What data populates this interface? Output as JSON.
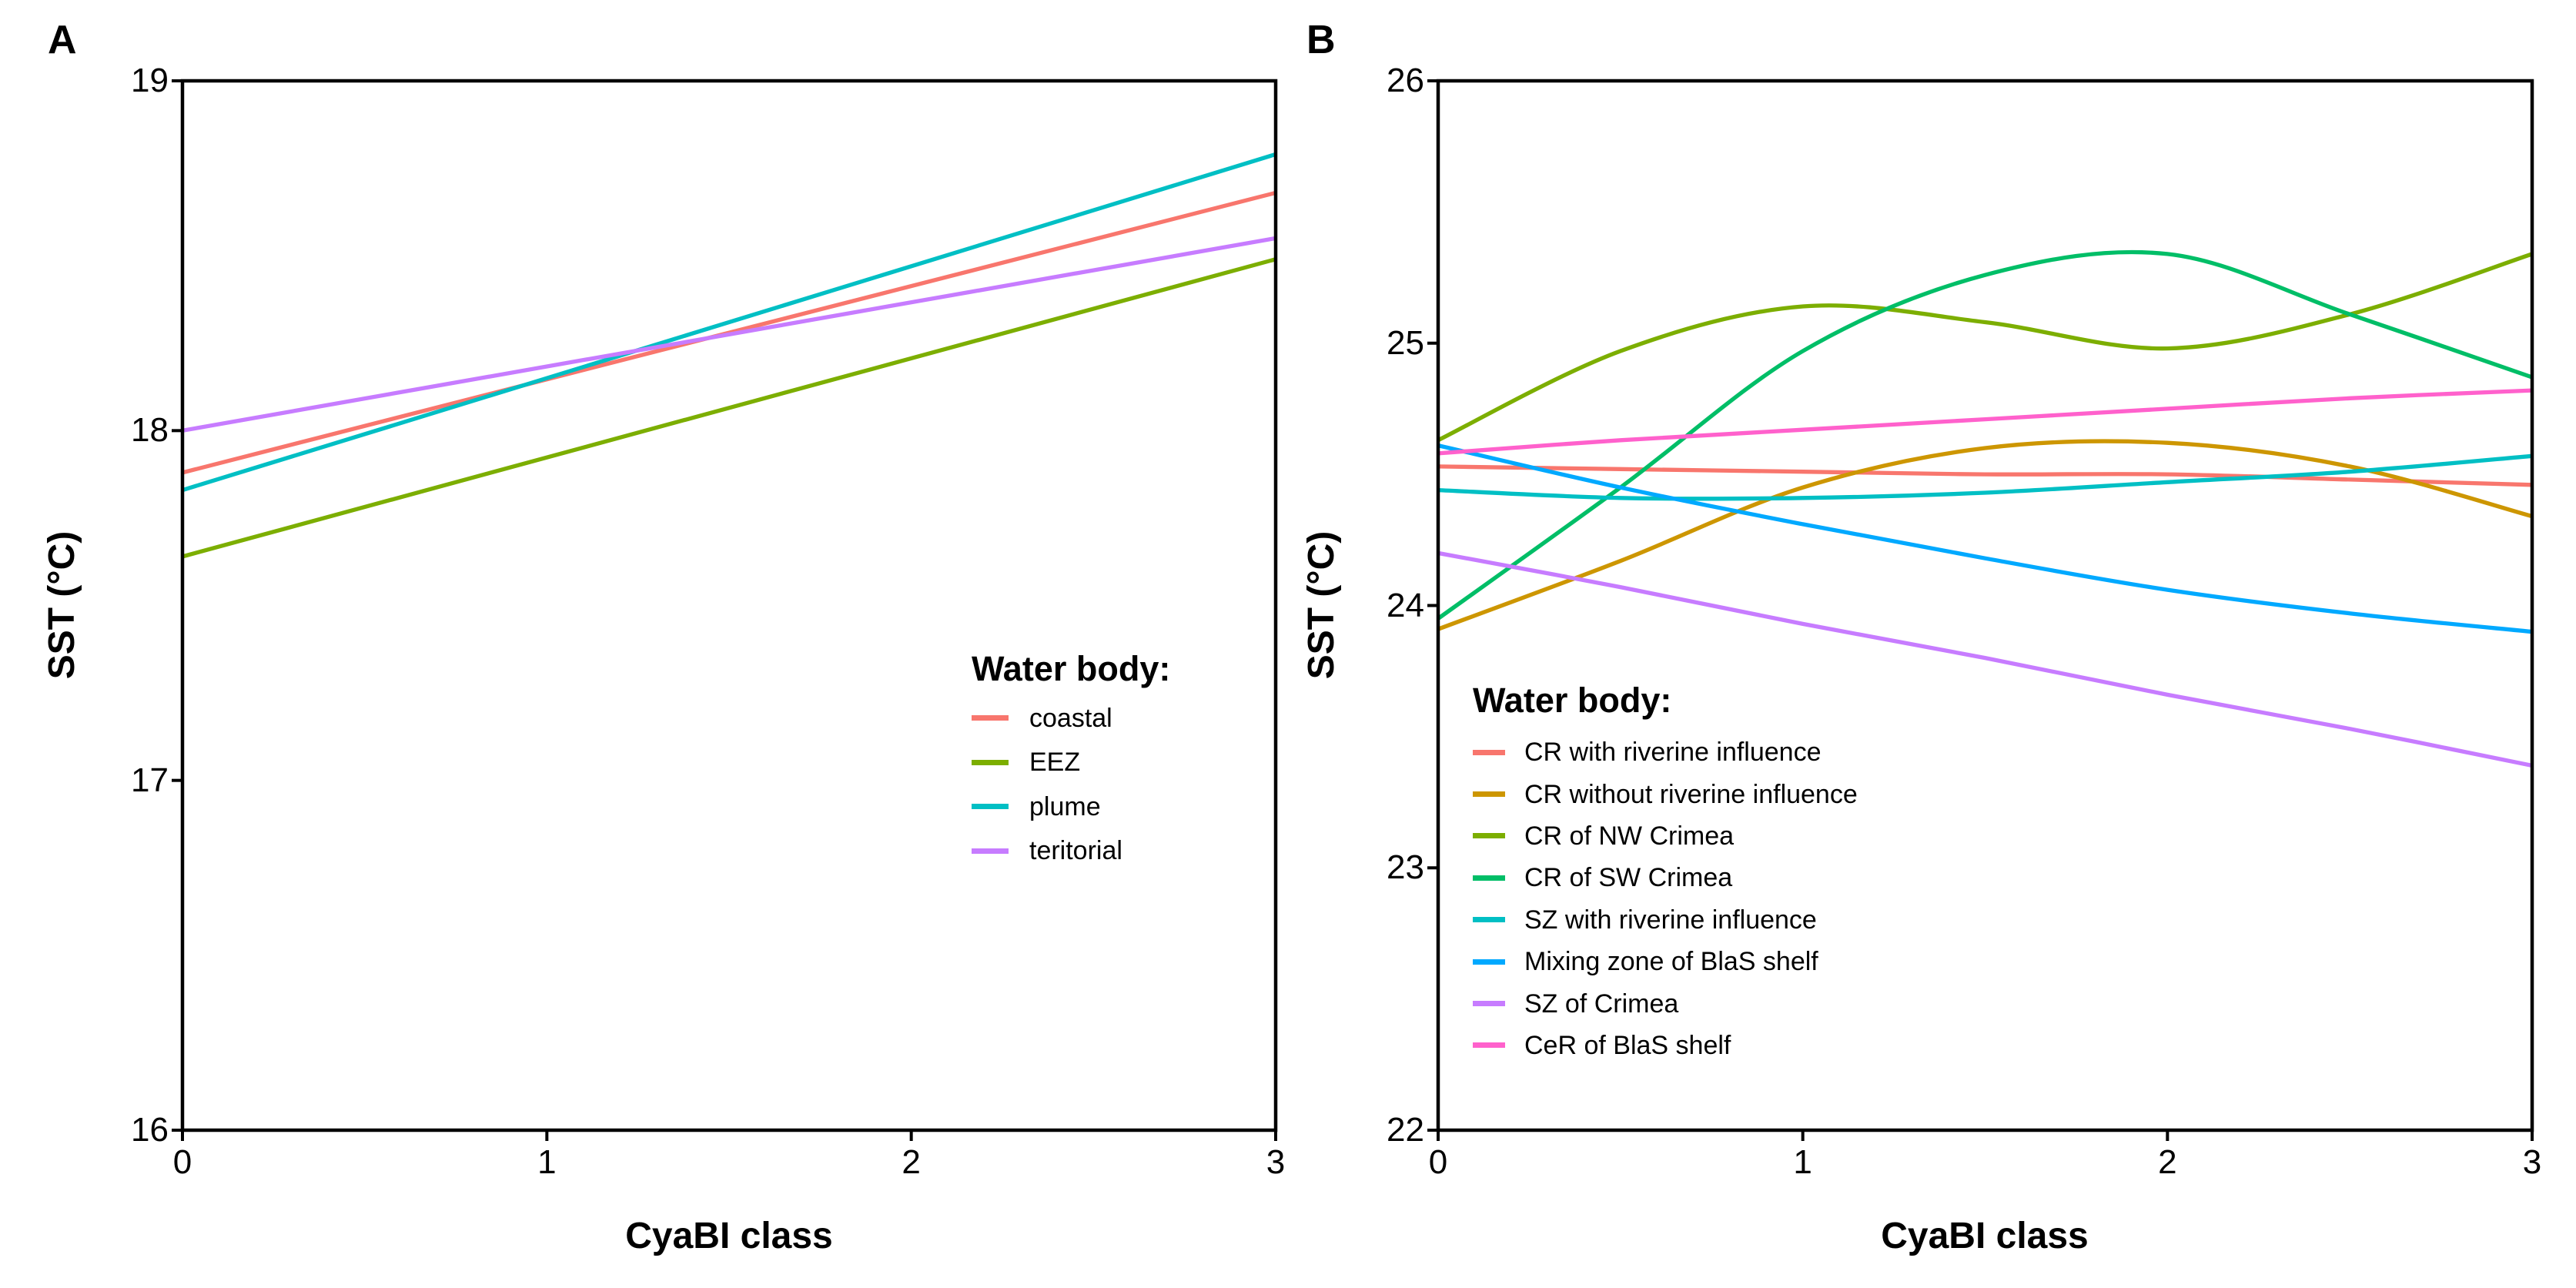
{
  "figure": {
    "background": "#FFFFFF",
    "text_color": "#000000",
    "axis_color": "#000000"
  },
  "chart_data": [
    {
      "panel_label": "A",
      "type": "line",
      "title": "",
      "xlabel": "CyaBI class",
      "ylabel": "SST (°C)",
      "xlim": [
        0,
        3
      ],
      "ylim": [
        16,
        19
      ],
      "xticks": [
        0,
        1,
        2,
        3
      ],
      "yticks": [
        16,
        17,
        18,
        19
      ],
      "grid": false,
      "legend_title": "Water body:",
      "legend_position": "inside right-center",
      "series": [
        {
          "name": "coastal",
          "color": "#F8766D",
          "x": [
            0,
            3
          ],
          "y": [
            17.88,
            18.68
          ]
        },
        {
          "name": "EEZ",
          "color": "#7CAE00",
          "x": [
            0,
            3
          ],
          "y": [
            17.64,
            18.49
          ]
        },
        {
          "name": "plume",
          "color": "#00BFC4",
          "x": [
            0,
            3
          ],
          "y": [
            17.83,
            18.79
          ]
        },
        {
          "name": "teritorial",
          "color": "#C77CFF",
          "x": [
            0,
            3
          ],
          "y": [
            18.0,
            18.55
          ]
        }
      ]
    },
    {
      "panel_label": "B",
      "type": "line",
      "title": "",
      "xlabel": "CyaBI class",
      "ylabel": "SST (°C)",
      "xlim": [
        0,
        3
      ],
      "ylim": [
        22,
        26
      ],
      "xticks": [
        0,
        1,
        2,
        3
      ],
      "yticks": [
        22,
        23,
        24,
        25,
        26
      ],
      "grid": false,
      "legend_title": "Water body:",
      "legend_position": "inside bottom-left",
      "series": [
        {
          "name": "CR with riverine influence",
          "color": "#F8766D",
          "x": [
            0,
            0.5,
            1,
            1.5,
            2,
            2.5,
            3
          ],
          "y": [
            24.53,
            24.52,
            24.51,
            24.5,
            24.5,
            24.48,
            24.46
          ]
        },
        {
          "name": "CR without riverine influence",
          "color": "#CD9600",
          "x": [
            0,
            0.5,
            1,
            1.5,
            2,
            2.5,
            3
          ],
          "y": [
            23.91,
            24.17,
            24.45,
            24.6,
            24.62,
            24.53,
            24.34
          ]
        },
        {
          "name": "CR of NW Crimea",
          "color": "#7CAE00",
          "x": [
            0,
            0.5,
            1,
            1.5,
            2,
            2.5,
            3
          ],
          "y": [
            24.63,
            24.97,
            25.14,
            25.08,
            24.98,
            25.11,
            25.34
          ]
        },
        {
          "name": "CR of SW Crimea",
          "color": "#00BE67",
          "x": [
            0,
            0.5,
            1,
            1.5,
            2,
            2.5,
            3
          ],
          "y": [
            23.95,
            24.45,
            24.97,
            25.26,
            25.34,
            25.11,
            24.87
          ]
        },
        {
          "name": "SZ with riverine influence",
          "color": "#00BFC4",
          "x": [
            0,
            0.5,
            1,
            1.5,
            2,
            2.5,
            3
          ],
          "y": [
            24.44,
            24.41,
            24.41,
            24.43,
            24.47,
            24.51,
            24.57
          ]
        },
        {
          "name": "Mixing zone of BlaS shelf",
          "color": "#00A9FF",
          "x": [
            0,
            0.5,
            1,
            1.5,
            2,
            2.5,
            3
          ],
          "y": [
            24.61,
            24.45,
            24.31,
            24.18,
            24.06,
            23.97,
            23.9
          ]
        },
        {
          "name": "SZ of Crimea",
          "color": "#C77CFF",
          "x": [
            0,
            0.5,
            1,
            1.5,
            2,
            2.5,
            3
          ],
          "y": [
            24.2,
            24.07,
            23.93,
            23.8,
            23.66,
            23.53,
            23.39
          ]
        },
        {
          "name": "CeR of BlaS shelf",
          "color": "#FF61CC",
          "x": [
            0,
            0.5,
            1,
            1.5,
            2,
            2.5,
            3
          ],
          "y": [
            24.58,
            24.63,
            24.67,
            24.71,
            24.75,
            24.79,
            24.82
          ]
        }
      ]
    }
  ]
}
